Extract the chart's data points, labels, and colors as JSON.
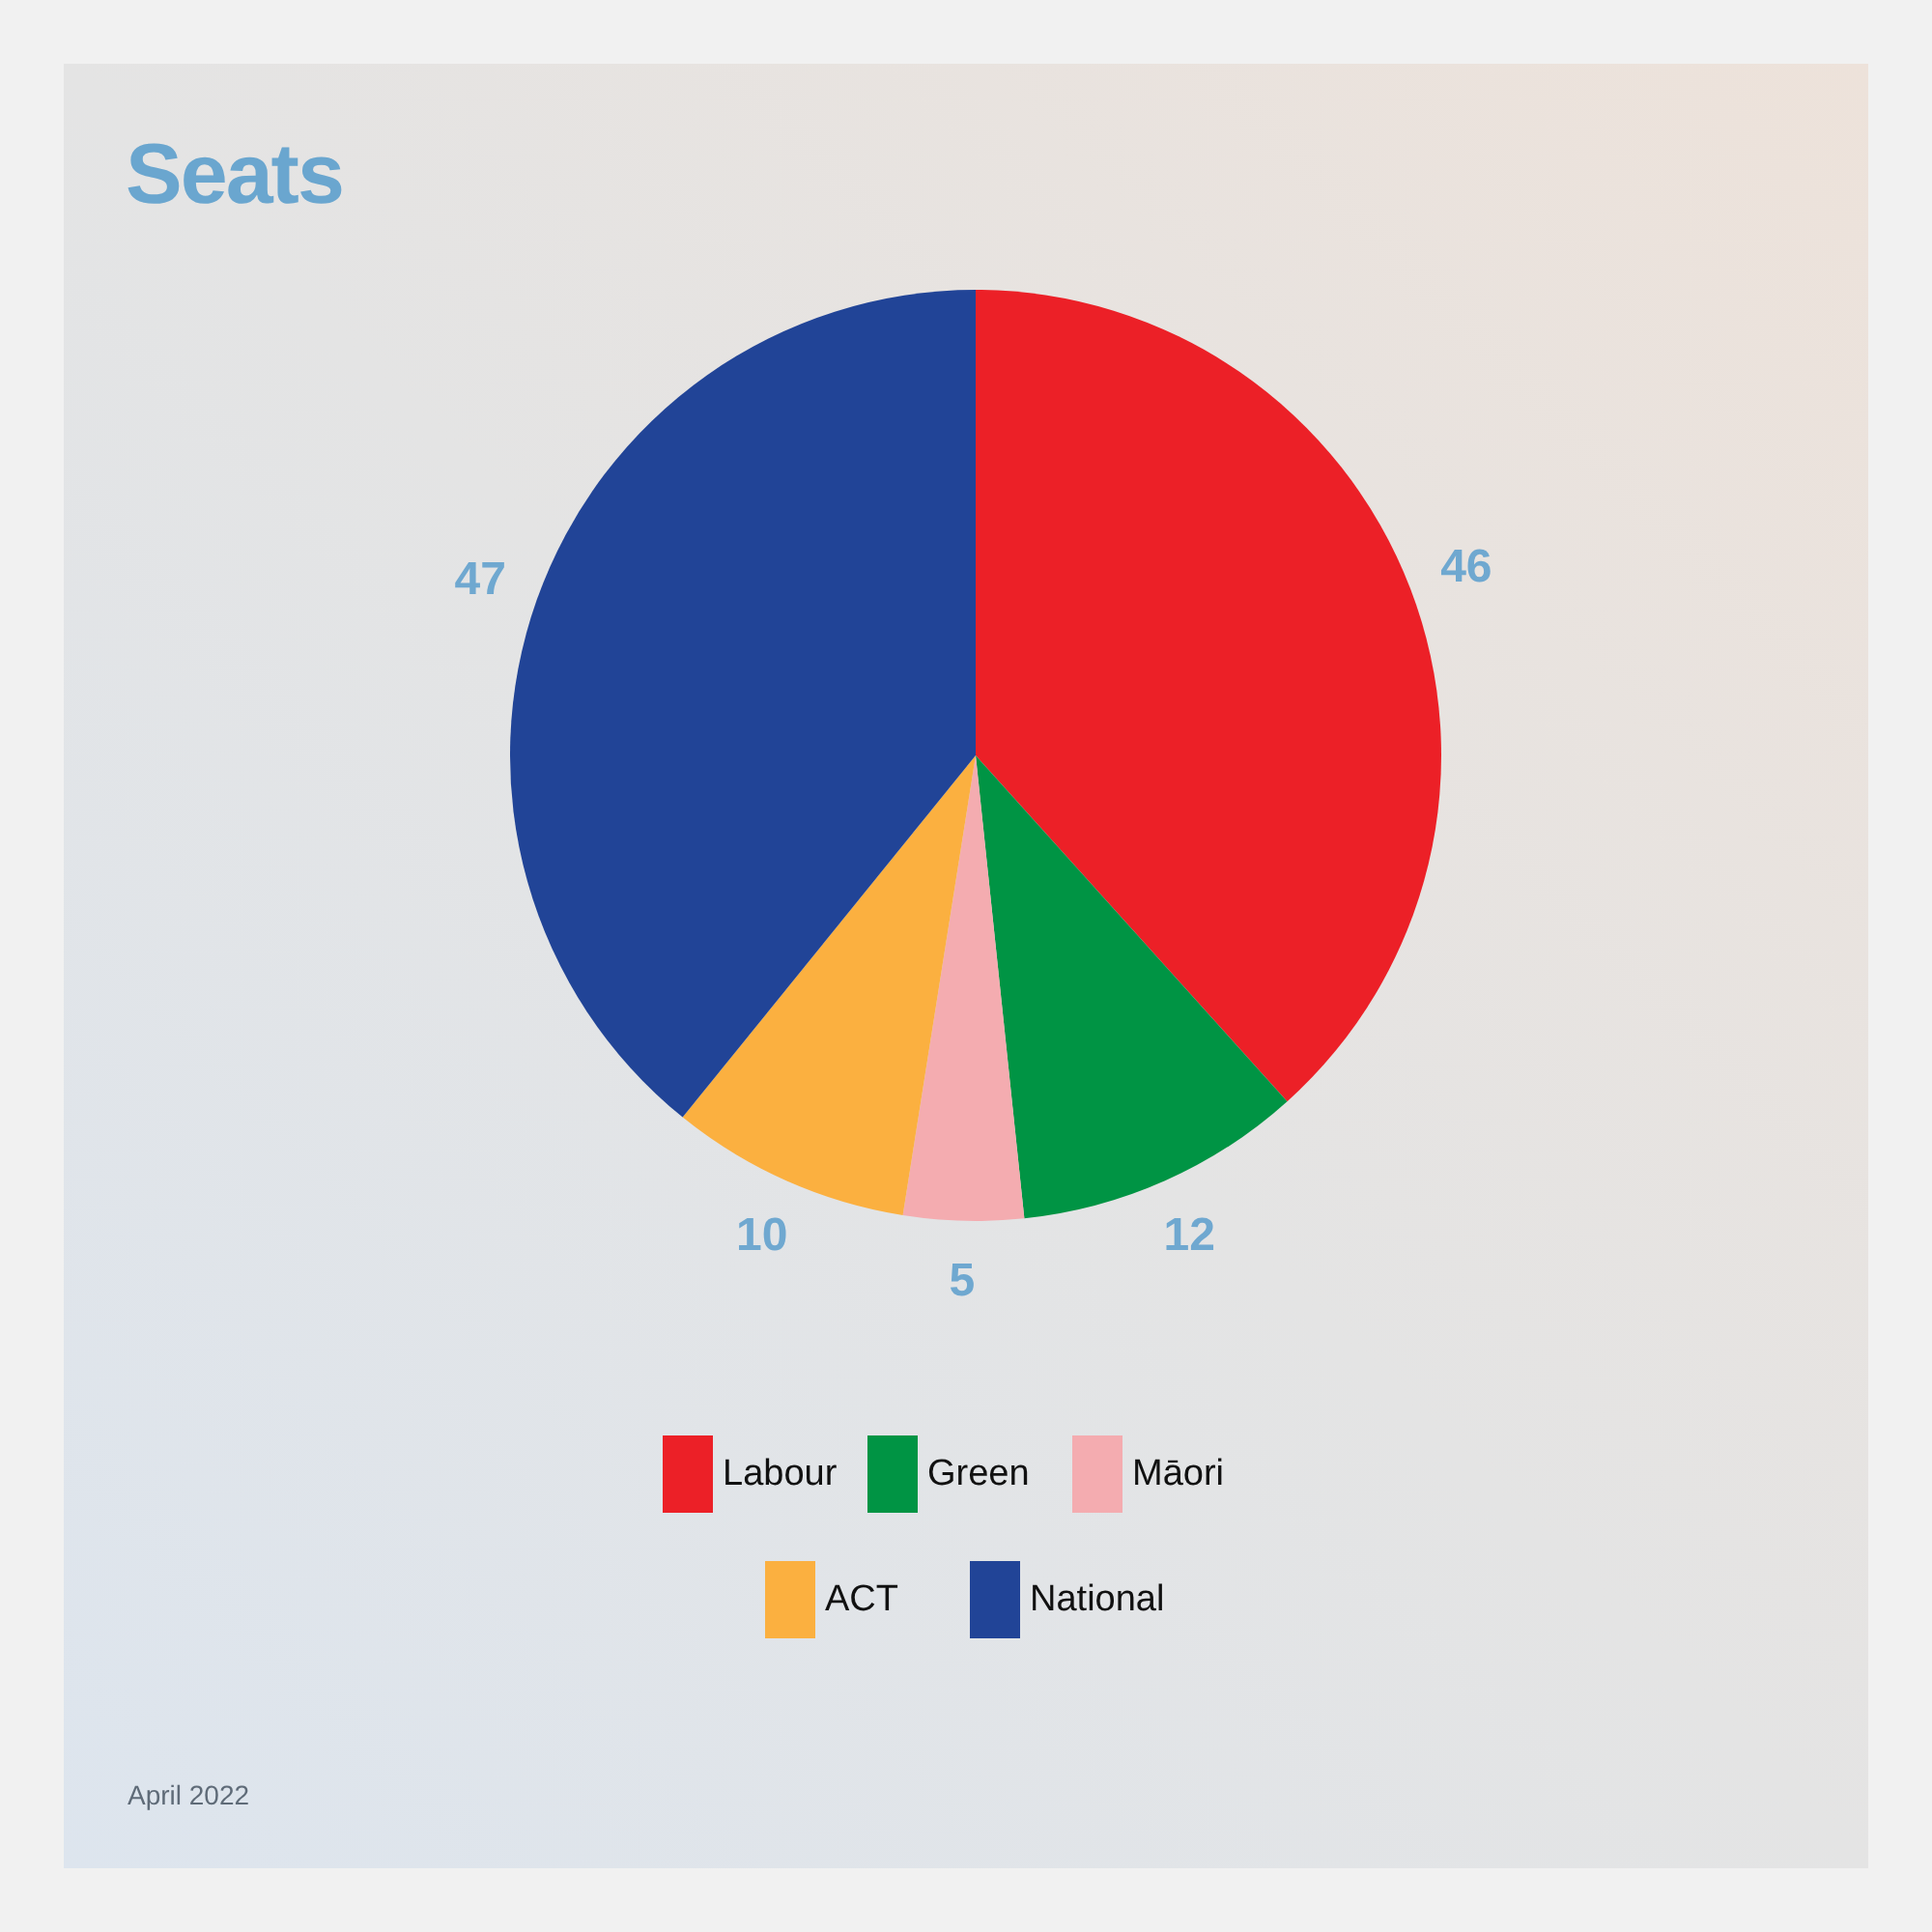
{
  "chart_data": {
    "type": "pie",
    "title": "Seats",
    "categories": [
      "Labour",
      "Green",
      "Māori",
      "ACT",
      "National"
    ],
    "values": [
      46,
      12,
      5,
      10,
      47
    ],
    "colors": [
      "#ec2027",
      "#009444",
      "#f4acb0",
      "#fbb040",
      "#214497"
    ],
    "data_labels": true,
    "legend": "bottom",
    "annotations": [
      "April 2022"
    ]
  }
}
